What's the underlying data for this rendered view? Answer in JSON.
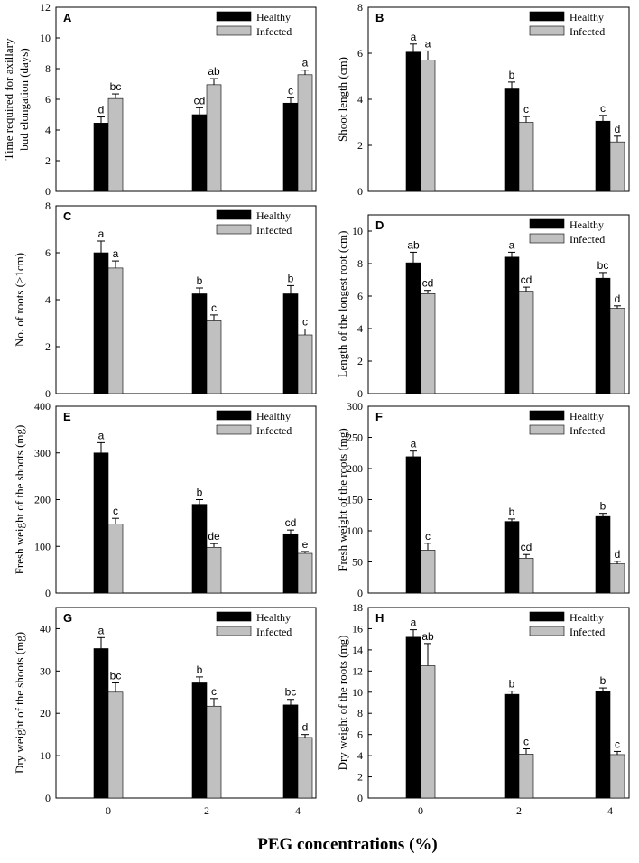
{
  "figure": {
    "xtitle": "PEG concentrations (%)",
    "colors": {
      "healthy": "#000000",
      "infected": "#c0c0c0",
      "axis": "#000000"
    }
  },
  "chart_data": [
    {
      "type": "bar",
      "panel": "A",
      "ylabel": [
        "Time required for axillary",
        "bud elongation (days)"
      ],
      "categories": [
        "0",
        "2",
        "4"
      ],
      "ylim": [
        0,
        12
      ],
      "yticks": [
        0,
        2,
        4,
        6,
        8,
        10,
        12
      ],
      "series": [
        {
          "name": "Healthy",
          "values": [
            4.45,
            5.0,
            5.75
          ],
          "errors": [
            0.4,
            0.45,
            0.35
          ],
          "letters": [
            "d",
            "cd",
            "c"
          ]
        },
        {
          "name": "Infected",
          "values": [
            6.05,
            6.95,
            7.6
          ],
          "errors": [
            0.3,
            0.4,
            0.3
          ],
          "letters": [
            "bc",
            "ab",
            "a"
          ]
        }
      ]
    },
    {
      "type": "bar",
      "panel": "B",
      "ylabel": [
        "Shoot length (cm)"
      ],
      "categories": [
        "0",
        "2",
        "4"
      ],
      "ylim": [
        0,
        8
      ],
      "yticks": [
        0,
        2,
        4,
        6,
        8
      ],
      "series": [
        {
          "name": "Healthy",
          "values": [
            6.05,
            4.45,
            3.05
          ],
          "errors": [
            0.35,
            0.3,
            0.25
          ],
          "letters": [
            "a",
            "b",
            "c"
          ]
        },
        {
          "name": "Infected",
          "values": [
            5.7,
            3.0,
            2.15
          ],
          "errors": [
            0.4,
            0.25,
            0.25
          ],
          "letters": [
            "a",
            "c",
            "d"
          ]
        }
      ]
    },
    {
      "type": "bar",
      "panel": "C",
      "ylabel": [
        "No. of roots (>1cm)"
      ],
      "categories": [
        "0",
        "2",
        "4"
      ],
      "ylim": [
        0,
        8
      ],
      "yticks": [
        0,
        2,
        4,
        6,
        8
      ],
      "series": [
        {
          "name": "Healthy",
          "values": [
            6.0,
            4.25,
            4.25
          ],
          "errors": [
            0.5,
            0.25,
            0.35
          ],
          "letters": [
            "a",
            "b",
            "b"
          ]
        },
        {
          "name": "Infected",
          "values": [
            5.35,
            3.1,
            2.5
          ],
          "errors": [
            0.3,
            0.25,
            0.25
          ],
          "letters": [
            "a",
            "c",
            "c"
          ]
        }
      ]
    },
    {
      "type": "bar",
      "panel": "D",
      "ylabel": [
        "Length of the longest root (cm)"
      ],
      "categories": [
        "0",
        "2",
        "4"
      ],
      "ylim": [
        0,
        11
      ],
      "yticks": [
        0,
        2,
        4,
        6,
        8,
        10
      ],
      "series": [
        {
          "name": "Healthy",
          "values": [
            8.05,
            8.4,
            7.1
          ],
          "errors": [
            0.65,
            0.3,
            0.35
          ],
          "letters": [
            "ab",
            "a",
            "bc"
          ]
        },
        {
          "name": "Infected",
          "values": [
            6.15,
            6.3,
            5.25
          ],
          "errors": [
            0.2,
            0.25,
            0.15
          ],
          "letters": [
            "cd",
            "cd",
            "d"
          ]
        }
      ]
    },
    {
      "type": "bar",
      "panel": "E",
      "ylabel": [
        "Fresh weight of the shoots (mg)"
      ],
      "categories": [
        "0",
        "2",
        "4"
      ],
      "ylim": [
        0,
        400
      ],
      "yticks": [
        0,
        100,
        200,
        300,
        400
      ],
      "series": [
        {
          "name": "Healthy",
          "values": [
            300,
            190,
            127
          ],
          "errors": [
            22,
            10,
            8
          ],
          "letters": [
            "a",
            "b",
            "cd"
          ]
        },
        {
          "name": "Infected",
          "values": [
            148,
            98,
            85
          ],
          "errors": [
            12,
            8,
            4
          ],
          "letters": [
            "c",
            "de",
            "e"
          ]
        }
      ]
    },
    {
      "type": "bar",
      "panel": "F",
      "ylabel": [
        "Fresh weight of the roots (mg)"
      ],
      "categories": [
        "0",
        "2",
        "4"
      ],
      "ylim": [
        0,
        300
      ],
      "yticks": [
        0,
        50,
        100,
        150,
        200,
        250,
        300
      ],
      "series": [
        {
          "name": "Healthy",
          "values": [
            219,
            115,
            123
          ],
          "errors": [
            9,
            4,
            5
          ],
          "letters": [
            "a",
            "b",
            "b"
          ]
        },
        {
          "name": "Infected",
          "values": [
            69,
            56,
            47
          ],
          "errors": [
            11,
            6,
            4
          ],
          "letters": [
            "c",
            "cd",
            "d"
          ]
        }
      ]
    },
    {
      "type": "bar",
      "panel": "G",
      "ylabel": [
        "Dry weight of the shoots (mg)"
      ],
      "categories": [
        "0",
        "2",
        "4"
      ],
      "ylim": [
        0,
        45
      ],
      "yticks": [
        0,
        10,
        20,
        30,
        40
      ],
      "series": [
        {
          "name": "Healthy",
          "values": [
            35.3,
            27.2,
            22.0
          ],
          "errors": [
            2.6,
            1.4,
            1.3
          ],
          "letters": [
            "a",
            "b",
            "bc"
          ]
        },
        {
          "name": "Infected",
          "values": [
            25.0,
            21.7,
            14.3
          ],
          "errors": [
            2.2,
            1.8,
            0.7
          ],
          "letters": [
            "bc",
            "c",
            "d"
          ]
        }
      ]
    },
    {
      "type": "bar",
      "panel": "H",
      "ylabel": [
        "Dry weight of the roots (mg)"
      ],
      "categories": [
        "0",
        "2",
        "4"
      ],
      "ylim": [
        0,
        18
      ],
      "yticks": [
        0,
        2,
        4,
        6,
        8,
        10,
        12,
        14,
        16,
        18
      ],
      "series": [
        {
          "name": "Healthy",
          "values": [
            15.2,
            9.8,
            10.1
          ],
          "errors": [
            0.7,
            0.3,
            0.3
          ],
          "letters": [
            "a",
            "b",
            "b"
          ]
        },
        {
          "name": "Infected",
          "values": [
            12.5,
            4.15,
            4.1
          ],
          "errors": [
            2.1,
            0.5,
            0.3
          ],
          "letters": [
            "ab",
            "c",
            "c"
          ]
        }
      ]
    }
  ]
}
